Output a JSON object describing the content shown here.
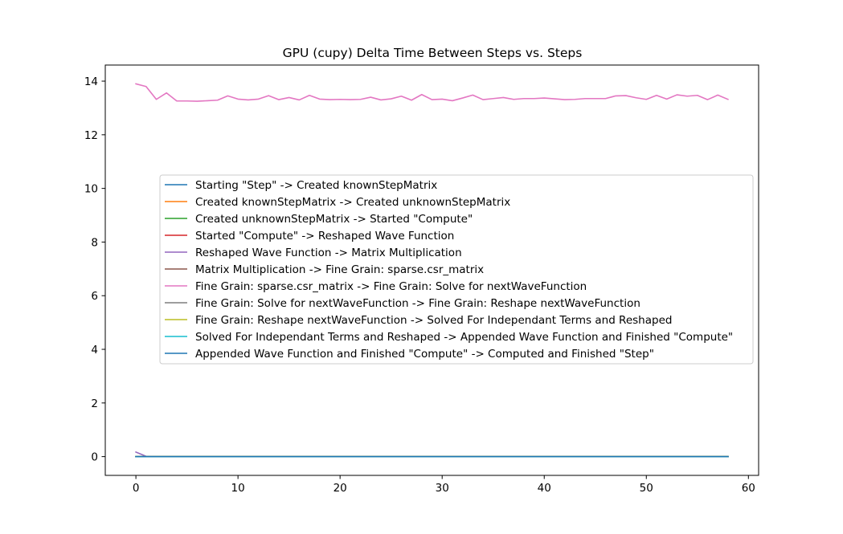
{
  "chart_data": {
    "type": "line",
    "title": "GPU (cupy) Delta Time Between Steps vs. Steps",
    "xlabel": "",
    "ylabel": "",
    "xlim": [
      -3,
      61
    ],
    "ylim": [
      -0.7,
      14.6
    ],
    "xticks": [
      0,
      10,
      20,
      30,
      40,
      50,
      60
    ],
    "yticks": [
      0,
      2,
      4,
      6,
      8,
      10,
      12,
      14
    ],
    "grid": false,
    "legend_position": "center-right",
    "x": [
      0,
      1,
      2,
      3,
      4,
      5,
      6,
      7,
      8,
      9,
      10,
      11,
      12,
      13,
      14,
      15,
      16,
      17,
      18,
      19,
      20,
      21,
      22,
      23,
      24,
      25,
      26,
      27,
      28,
      29,
      30,
      31,
      32,
      33,
      34,
      35,
      36,
      37,
      38,
      39,
      40,
      41,
      42,
      43,
      44,
      45,
      46,
      47,
      48,
      49,
      50,
      51,
      52,
      53,
      54,
      55,
      56,
      57,
      58
    ],
    "series": [
      {
        "name": "Starting \"Step\" -> Created knownStepMatrix",
        "color": "#1f77b4",
        "values": [
          0,
          0,
          0,
          0,
          0,
          0,
          0,
          0,
          0,
          0,
          0,
          0,
          0,
          0,
          0,
          0,
          0,
          0,
          0,
          0,
          0,
          0,
          0,
          0,
          0,
          0,
          0,
          0,
          0,
          0,
          0,
          0,
          0,
          0,
          0,
          0,
          0,
          0,
          0,
          0,
          0,
          0,
          0,
          0,
          0,
          0,
          0,
          0,
          0,
          0,
          0,
          0,
          0,
          0,
          0,
          0,
          0,
          0,
          0
        ]
      },
      {
        "name": "Created knownStepMatrix -> Created unknownStepMatrix",
        "color": "#ff7f0e",
        "values": [
          0,
          0,
          0,
          0,
          0,
          0,
          0,
          0,
          0,
          0,
          0,
          0,
          0,
          0,
          0,
          0,
          0,
          0,
          0,
          0,
          0,
          0,
          0,
          0,
          0,
          0,
          0,
          0,
          0,
          0,
          0,
          0,
          0,
          0,
          0,
          0,
          0,
          0,
          0,
          0,
          0,
          0,
          0,
          0,
          0,
          0,
          0,
          0,
          0,
          0,
          0,
          0,
          0,
          0,
          0,
          0,
          0,
          0,
          0
        ]
      },
      {
        "name": "Created unknownStepMatrix -> Started \"Compute\"",
        "color": "#2ca02c",
        "values": [
          0,
          0,
          0,
          0,
          0,
          0,
          0,
          0,
          0,
          0,
          0,
          0,
          0,
          0,
          0,
          0,
          0,
          0,
          0,
          0,
          0,
          0,
          0,
          0,
          0,
          0,
          0,
          0,
          0,
          0,
          0,
          0,
          0,
          0,
          0,
          0,
          0,
          0,
          0,
          0,
          0,
          0,
          0,
          0,
          0,
          0,
          0,
          0,
          0,
          0,
          0,
          0,
          0,
          0,
          0,
          0,
          0,
          0,
          0
        ]
      },
      {
        "name": "Started \"Compute\" -> Reshaped Wave Function",
        "color": "#d62728",
        "values": [
          0,
          0,
          0,
          0,
          0,
          0,
          0,
          0,
          0,
          0,
          0,
          0,
          0,
          0,
          0,
          0,
          0,
          0,
          0,
          0,
          0,
          0,
          0,
          0,
          0,
          0,
          0,
          0,
          0,
          0,
          0,
          0,
          0,
          0,
          0,
          0,
          0,
          0,
          0,
          0,
          0,
          0,
          0,
          0,
          0,
          0,
          0,
          0,
          0,
          0,
          0,
          0,
          0,
          0,
          0,
          0,
          0,
          0,
          0
        ]
      },
      {
        "name": "Reshaped Wave Function -> Matrix Multiplication",
        "color": "#9467bd",
        "values": [
          0.17,
          0.01,
          0,
          0,
          0,
          0,
          0,
          0,
          0,
          0,
          0,
          0,
          0,
          0,
          0,
          0,
          0,
          0,
          0,
          0,
          0,
          0,
          0,
          0,
          0,
          0,
          0,
          0,
          0,
          0,
          0,
          0,
          0,
          0,
          0,
          0,
          0,
          0,
          0,
          0,
          0,
          0,
          0,
          0,
          0,
          0,
          0,
          0,
          0,
          0,
          0,
          0,
          0,
          0,
          0,
          0,
          0,
          0,
          0
        ]
      },
      {
        "name": "Matrix Multiplication -> Fine Grain: sparse.csr_matrix",
        "color": "#8c564b",
        "values": [
          0,
          0,
          0,
          0,
          0,
          0,
          0,
          0,
          0,
          0,
          0,
          0,
          0,
          0,
          0,
          0,
          0,
          0,
          0,
          0,
          0,
          0,
          0,
          0,
          0,
          0,
          0,
          0,
          0,
          0,
          0,
          0,
          0,
          0,
          0,
          0,
          0,
          0,
          0,
          0,
          0,
          0,
          0,
          0,
          0,
          0,
          0,
          0,
          0,
          0,
          0,
          0,
          0,
          0,
          0,
          0,
          0,
          0,
          0
        ]
      },
      {
        "name": "Fine Grain: sparse.csr_matrix -> Fine Grain: Solve for nextWaveFunction",
        "color": "#e377c2",
        "values": [
          13.9,
          13.8,
          13.32,
          13.56,
          13.26,
          13.26,
          13.25,
          13.27,
          13.29,
          13.45,
          13.33,
          13.3,
          13.33,
          13.46,
          13.31,
          13.39,
          13.3,
          13.47,
          13.33,
          13.31,
          13.32,
          13.31,
          13.32,
          13.4,
          13.3,
          13.34,
          13.44,
          13.29,
          13.5,
          13.31,
          13.33,
          13.27,
          13.37,
          13.48,
          13.31,
          13.35,
          13.39,
          13.32,
          13.35,
          13.35,
          13.37,
          13.34,
          13.31,
          13.32,
          13.35,
          13.35,
          13.35,
          13.45,
          13.46,
          13.38,
          13.32,
          13.47,
          13.33,
          13.49,
          13.44,
          13.47,
          13.31,
          13.48,
          13.32
        ]
      },
      {
        "name": "Fine Grain: Solve for nextWaveFunction -> Fine Grain: Reshape nextWaveFunction",
        "color": "#7f7f7f",
        "values": [
          0,
          0,
          0,
          0,
          0,
          0,
          0,
          0,
          0,
          0,
          0,
          0,
          0,
          0,
          0,
          0,
          0,
          0,
          0,
          0,
          0,
          0,
          0,
          0,
          0,
          0,
          0,
          0,
          0,
          0,
          0,
          0,
          0,
          0,
          0,
          0,
          0,
          0,
          0,
          0,
          0,
          0,
          0,
          0,
          0,
          0,
          0,
          0,
          0,
          0,
          0,
          0,
          0,
          0,
          0,
          0,
          0,
          0,
          0
        ]
      },
      {
        "name": "Fine Grain: Reshape nextWaveFunction -> Solved For Independant Terms and Reshaped",
        "color": "#bcbd22",
        "values": [
          0,
          0,
          0,
          0,
          0,
          0,
          0,
          0,
          0,
          0,
          0,
          0,
          0,
          0,
          0,
          0,
          0,
          0,
          0,
          0,
          0,
          0,
          0,
          0,
          0,
          0,
          0,
          0,
          0,
          0,
          0,
          0,
          0,
          0,
          0,
          0,
          0,
          0,
          0,
          0,
          0,
          0,
          0,
          0,
          0,
          0,
          0,
          0,
          0,
          0,
          0,
          0,
          0,
          0,
          0,
          0,
          0,
          0,
          0
        ]
      },
      {
        "name": "Solved For Independant Terms and Reshaped -> Appended Wave Function and Finished \"Compute\"",
        "color": "#17becf",
        "values": [
          0,
          0,
          0,
          0,
          0,
          0,
          0,
          0,
          0,
          0,
          0,
          0,
          0,
          0,
          0,
          0,
          0,
          0,
          0,
          0,
          0,
          0,
          0,
          0,
          0,
          0,
          0,
          0,
          0,
          0,
          0,
          0,
          0,
          0,
          0,
          0,
          0,
          0,
          0,
          0,
          0,
          0,
          0,
          0,
          0,
          0,
          0,
          0,
          0,
          0,
          0,
          0,
          0,
          0,
          0,
          0,
          0,
          0,
          0
        ]
      },
      {
        "name": "Appended Wave Function and Finished \"Compute\" -> Computed and Finished \"Step\"",
        "color": "#1f77b4",
        "values": [
          0,
          0,
          0,
          0,
          0,
          0,
          0,
          0,
          0,
          0,
          0,
          0,
          0,
          0,
          0,
          0,
          0,
          0,
          0,
          0,
          0,
          0,
          0,
          0,
          0,
          0,
          0,
          0,
          0,
          0,
          0,
          0,
          0,
          0,
          0,
          0,
          0,
          0,
          0,
          0,
          0,
          0,
          0,
          0,
          0,
          0,
          0,
          0,
          0,
          0,
          0,
          0,
          0,
          0,
          0,
          0,
          0,
          0,
          0
        ]
      }
    ]
  }
}
